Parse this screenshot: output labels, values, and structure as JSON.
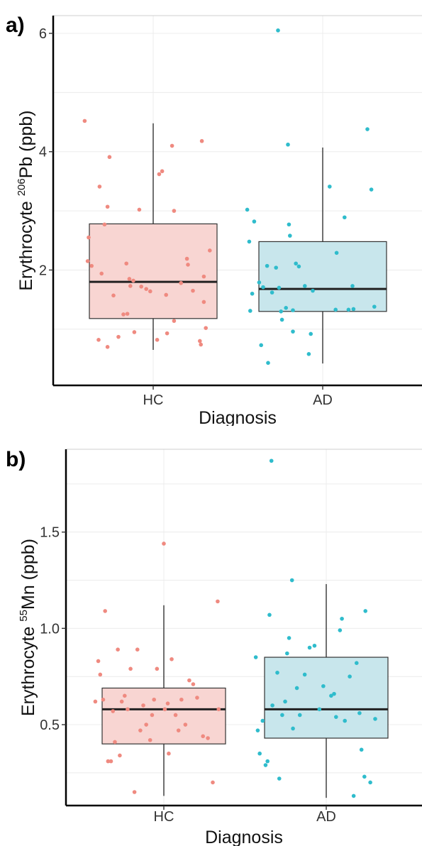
{
  "chart_data": [
    {
      "type": "boxplot",
      "panel_label": "a)",
      "xlabel": "Diagnosis",
      "ylabel": {
        "prefix": "Erythrocyte ",
        "superscript": "206",
        "suffix": "Pb (ppb)"
      },
      "categories": [
        "HC",
        "AD"
      ],
      "yticks": [
        2,
        4,
        6
      ],
      "ylim": [
        0.05,
        6.3
      ],
      "grid": true,
      "colors": {
        "HC": {
          "fill": "#f8d5d2",
          "point": "#ef8a80"
        },
        "AD": {
          "fill": "#c8e6ec",
          "point": "#2fbccc"
        }
      },
      "boxes": [
        {
          "category": "HC",
          "min": 0.65,
          "q1": 1.18,
          "median": 1.8,
          "q3": 2.78,
          "max": 4.48
        },
        {
          "category": "AD",
          "min": 0.42,
          "q1": 1.3,
          "median": 1.68,
          "q3": 2.48,
          "max": 4.07
        }
      ],
      "points": [
        {
          "category": "HC",
          "jitter": -0.69,
          "value": 4.52
        },
        {
          "category": "HC",
          "jitter": -0.65,
          "value": 2.55
        },
        {
          "category": "HC",
          "jitter": -0.66,
          "value": 2.15
        },
        {
          "category": "HC",
          "jitter": -0.62,
          "value": 2.07
        },
        {
          "category": "HC",
          "jitter": -0.54,
          "value": 3.41
        },
        {
          "category": "HC",
          "jitter": -0.49,
          "value": 2.77
        },
        {
          "category": "HC",
          "jitter": -0.46,
          "value": 3.07
        },
        {
          "category": "HC",
          "jitter": -0.44,
          "value": 3.91
        },
        {
          "category": "HC",
          "jitter": -0.52,
          "value": 1.94
        },
        {
          "category": "HC",
          "jitter": -0.55,
          "value": 0.82
        },
        {
          "category": "HC",
          "jitter": -0.46,
          "value": 0.7
        },
        {
          "category": "HC",
          "jitter": -0.35,
          "value": 0.87
        },
        {
          "category": "HC",
          "jitter": -0.4,
          "value": 1.57
        },
        {
          "category": "HC",
          "jitter": -0.3,
          "value": 1.25
        },
        {
          "category": "HC",
          "jitter": -0.26,
          "value": 1.26
        },
        {
          "category": "HC",
          "jitter": -0.23,
          "value": 1.73
        },
        {
          "category": "HC",
          "jitter": -0.2,
          "value": 1.82
        },
        {
          "category": "HC",
          "jitter": -0.24,
          "value": 1.85
        },
        {
          "category": "HC",
          "jitter": -0.27,
          "value": 2.11
        },
        {
          "category": "HC",
          "jitter": -0.19,
          "value": 0.95
        },
        {
          "category": "HC",
          "jitter": -0.14,
          "value": 3.02
        },
        {
          "category": "HC",
          "jitter": -0.12,
          "value": 1.72
        },
        {
          "category": "HC",
          "jitter": -0.07,
          "value": 1.68
        },
        {
          "category": "HC",
          "jitter": -0.03,
          "value": 1.64
        },
        {
          "category": "HC",
          "jitter": 0.04,
          "value": 0.82
        },
        {
          "category": "HC",
          "jitter": 0.06,
          "value": 3.62
        },
        {
          "category": "HC",
          "jitter": 0.09,
          "value": 3.67
        },
        {
          "category": "HC",
          "jitter": 0.13,
          "value": 1.58
        },
        {
          "category": "HC",
          "jitter": 0.14,
          "value": 0.93
        },
        {
          "category": "HC",
          "jitter": 0.19,
          "value": 4.1
        },
        {
          "category": "HC",
          "jitter": 0.21,
          "value": 3.0
        },
        {
          "category": "HC",
          "jitter": 0.21,
          "value": 1.14
        },
        {
          "category": "HC",
          "jitter": 0.28,
          "value": 1.78
        },
        {
          "category": "HC",
          "jitter": 0.34,
          "value": 2.19
        },
        {
          "category": "HC",
          "jitter": 0.35,
          "value": 2.09
        },
        {
          "category": "HC",
          "jitter": 0.4,
          "value": 1.65
        },
        {
          "category": "HC",
          "jitter": 0.47,
          "value": 0.8
        },
        {
          "category": "HC",
          "jitter": 0.48,
          "value": 0.74
        },
        {
          "category": "HC",
          "jitter": 0.49,
          "value": 4.18
        },
        {
          "category": "HC",
          "jitter": 0.51,
          "value": 1.46
        },
        {
          "category": "HC",
          "jitter": 0.51,
          "value": 1.89
        },
        {
          "category": "HC",
          "jitter": 0.53,
          "value": 1.02
        },
        {
          "category": "HC",
          "jitter": 0.57,
          "value": 2.33
        },
        {
          "category": "AD",
          "jitter": -0.76,
          "value": 3.02
        },
        {
          "category": "AD",
          "jitter": -0.74,
          "value": 2.48
        },
        {
          "category": "AD",
          "jitter": -0.69,
          "value": 2.82
        },
        {
          "category": "AD",
          "jitter": -0.71,
          "value": 1.6
        },
        {
          "category": "AD",
          "jitter": -0.73,
          "value": 1.31
        },
        {
          "category": "AD",
          "jitter": -0.62,
          "value": 0.73
        },
        {
          "category": "AD",
          "jitter": -0.64,
          "value": 1.79
        },
        {
          "category": "AD",
          "jitter": -0.6,
          "value": 1.71
        },
        {
          "category": "AD",
          "jitter": -0.55,
          "value": 0.43
        },
        {
          "category": "AD",
          "jitter": -0.56,
          "value": 2.07
        },
        {
          "category": "AD",
          "jitter": -0.51,
          "value": 1.62
        },
        {
          "category": "AD",
          "jitter": -0.47,
          "value": 2.04
        },
        {
          "category": "AD",
          "jitter": -0.44,
          "value": 1.7
        },
        {
          "category": "AD",
          "jitter": -0.42,
          "value": 1.3
        },
        {
          "category": "AD",
          "jitter": -0.41,
          "value": 1.16
        },
        {
          "category": "AD",
          "jitter": -0.37,
          "value": 1.36
        },
        {
          "category": "AD",
          "jitter": -0.34,
          "value": 2.77
        },
        {
          "category": "AD",
          "jitter": -0.33,
          "value": 2.58
        },
        {
          "category": "AD",
          "jitter": -0.3,
          "value": 1.32
        },
        {
          "category": "AD",
          "jitter": -0.27,
          "value": 2.11
        },
        {
          "category": "AD",
          "jitter": -0.3,
          "value": 0.96
        },
        {
          "category": "AD",
          "jitter": -0.24,
          "value": 2.06
        },
        {
          "category": "AD",
          "jitter": -0.18,
          "value": 1.73
        },
        {
          "category": "AD",
          "jitter": -0.14,
          "value": 0.58
        },
        {
          "category": "AD",
          "jitter": -0.1,
          "value": 1.65
        },
        {
          "category": "AD",
          "jitter": -0.12,
          "value": 0.92
        },
        {
          "category": "AD",
          "jitter": 0.07,
          "value": 3.41
        },
        {
          "category": "AD",
          "jitter": 0.13,
          "value": 1.33
        },
        {
          "category": "AD",
          "jitter": 0.14,
          "value": 2.29
        },
        {
          "category": "AD",
          "jitter": 0.22,
          "value": 2.89
        },
        {
          "category": "AD",
          "jitter": 0.26,
          "value": 1.33
        },
        {
          "category": "AD",
          "jitter": 0.3,
          "value": 1.73
        },
        {
          "category": "AD",
          "jitter": 0.31,
          "value": 1.34
        },
        {
          "category": "AD",
          "jitter": 0.45,
          "value": 4.38
        },
        {
          "category": "AD",
          "jitter": 0.49,
          "value": 3.36
        },
        {
          "category": "AD",
          "jitter": 0.52,
          "value": 1.38
        },
        {
          "category": "AD",
          "jitter": -0.35,
          "value": 4.12
        },
        {
          "category": "AD",
          "jitter": -0.45,
          "value": 6.05
        }
      ]
    },
    {
      "type": "boxplot",
      "panel_label": "b)",
      "xlabel": "Diagnosis",
      "ylabel": {
        "prefix": "Erythrocyte ",
        "superscript": "55",
        "suffix": "Mn (ppb)"
      },
      "categories": [
        "HC",
        "AD"
      ],
      "yticks": [
        0.5,
        1.0,
        1.5
      ],
      "ytick_labels": [
        "0.5",
        "1.0",
        "1.5"
      ],
      "ylim": [
        0.08,
        1.93
      ],
      "grid": true,
      "colors": {
        "HC": {
          "fill": "#f8d5d2",
          "point": "#ef8a80"
        },
        "AD": {
          "fill": "#c8e6ec",
          "point": "#2fbccc"
        }
      },
      "boxes": [
        {
          "category": "HC",
          "min": 0.13,
          "q1": 0.4,
          "median": 0.58,
          "q3": 0.69,
          "max": 1.12
        },
        {
          "category": "AD",
          "min": 0.12,
          "q1": 0.43,
          "median": 0.58,
          "q3": 0.85,
          "max": 1.23
        }
      ],
      "points": [
        {
          "category": "HC",
          "jitter": -0.7,
          "value": 0.62
        },
        {
          "category": "HC",
          "jitter": -0.67,
          "value": 0.83
        },
        {
          "category": "HC",
          "jitter": -0.65,
          "value": 0.76
        },
        {
          "category": "HC",
          "jitter": -0.6,
          "value": 1.09
        },
        {
          "category": "HC",
          "jitter": -0.62,
          "value": 0.63
        },
        {
          "category": "HC",
          "jitter": -0.57,
          "value": 0.31
        },
        {
          "category": "HC",
          "jitter": -0.54,
          "value": 0.31
        },
        {
          "category": "HC",
          "jitter": -0.52,
          "value": 0.57
        },
        {
          "category": "HC",
          "jitter": -0.5,
          "value": 0.41
        },
        {
          "category": "HC",
          "jitter": -0.47,
          "value": 0.89
        },
        {
          "category": "HC",
          "jitter": -0.45,
          "value": 0.34
        },
        {
          "category": "HC",
          "jitter": -0.43,
          "value": 0.62
        },
        {
          "category": "HC",
          "jitter": -0.4,
          "value": 0.65
        },
        {
          "category": "HC",
          "jitter": -0.37,
          "value": 0.58
        },
        {
          "category": "HC",
          "jitter": -0.34,
          "value": 0.79
        },
        {
          "category": "HC",
          "jitter": -0.3,
          "value": 0.15
        },
        {
          "category": "HC",
          "jitter": -0.27,
          "value": 0.89
        },
        {
          "category": "HC",
          "jitter": -0.24,
          "value": 0.47
        },
        {
          "category": "HC",
          "jitter": -0.21,
          "value": 0.6
        },
        {
          "category": "HC",
          "jitter": -0.18,
          "value": 0.5
        },
        {
          "category": "HC",
          "jitter": -0.12,
          "value": 0.55
        },
        {
          "category": "HC",
          "jitter": -0.1,
          "value": 0.63
        },
        {
          "category": "HC",
          "jitter": -0.07,
          "value": 0.79
        },
        {
          "category": "HC",
          "jitter": 0.0,
          "value": 1.44
        },
        {
          "category": "HC",
          "jitter": 0.01,
          "value": 0.58
        },
        {
          "category": "HC",
          "jitter": 0.04,
          "value": 0.61
        },
        {
          "category": "HC",
          "jitter": 0.05,
          "value": 0.35
        },
        {
          "category": "HC",
          "jitter": 0.08,
          "value": 0.84
        },
        {
          "category": "HC",
          "jitter": 0.12,
          "value": 0.55
        },
        {
          "category": "HC",
          "jitter": 0.15,
          "value": 0.47
        },
        {
          "category": "HC",
          "jitter": 0.18,
          "value": 0.63
        },
        {
          "category": "HC",
          "jitter": 0.22,
          "value": 0.5
        },
        {
          "category": "HC",
          "jitter": 0.26,
          "value": 0.73
        },
        {
          "category": "HC",
          "jitter": 0.3,
          "value": 0.71
        },
        {
          "category": "HC",
          "jitter": 0.34,
          "value": 0.64
        },
        {
          "category": "HC",
          "jitter": 0.4,
          "value": 0.44
        },
        {
          "category": "HC",
          "jitter": 0.45,
          "value": 0.43
        },
        {
          "category": "HC",
          "jitter": 0.5,
          "value": 0.2
        },
        {
          "category": "HC",
          "jitter": 0.55,
          "value": 1.14
        },
        {
          "category": "HC",
          "jitter": 0.56,
          "value": 0.58
        },
        {
          "category": "HC",
          "jitter": -0.14,
          "value": 0.42
        },
        {
          "category": "AD",
          "jitter": -0.72,
          "value": 0.85
        },
        {
          "category": "AD",
          "jitter": -0.7,
          "value": 0.47
        },
        {
          "category": "AD",
          "jitter": -0.68,
          "value": 0.35
        },
        {
          "category": "AD",
          "jitter": -0.65,
          "value": 0.52
        },
        {
          "category": "AD",
          "jitter": -0.62,
          "value": 0.29
        },
        {
          "category": "AD",
          "jitter": -0.6,
          "value": 0.31
        },
        {
          "category": "AD",
          "jitter": -0.58,
          "value": 1.07
        },
        {
          "category": "AD",
          "jitter": -0.55,
          "value": 0.6
        },
        {
          "category": "AD",
          "jitter": -0.5,
          "value": 0.77
        },
        {
          "category": "AD",
          "jitter": -0.48,
          "value": 0.22
        },
        {
          "category": "AD",
          "jitter": -0.45,
          "value": 0.55
        },
        {
          "category": "AD",
          "jitter": -0.42,
          "value": 0.62
        },
        {
          "category": "AD",
          "jitter": -0.4,
          "value": 0.87
        },
        {
          "category": "AD",
          "jitter": -0.38,
          "value": 0.95
        },
        {
          "category": "AD",
          "jitter": -0.35,
          "value": 1.25
        },
        {
          "category": "AD",
          "jitter": -0.34,
          "value": 0.48
        },
        {
          "category": "AD",
          "jitter": -0.3,
          "value": 0.69
        },
        {
          "category": "AD",
          "jitter": -0.27,
          "value": 0.55
        },
        {
          "category": "AD",
          "jitter": -0.22,
          "value": 0.76
        },
        {
          "category": "AD",
          "jitter": -0.17,
          "value": 0.9
        },
        {
          "category": "AD",
          "jitter": -0.12,
          "value": 0.91
        },
        {
          "category": "AD",
          "jitter": -0.07,
          "value": 0.58
        },
        {
          "category": "AD",
          "jitter": -0.03,
          "value": 0.7
        },
        {
          "category": "AD",
          "jitter": 0.05,
          "value": 0.65
        },
        {
          "category": "AD",
          "jitter": 0.08,
          "value": 0.66
        },
        {
          "category": "AD",
          "jitter": 0.1,
          "value": 0.54
        },
        {
          "category": "AD",
          "jitter": 0.14,
          "value": 0.99
        },
        {
          "category": "AD",
          "jitter": 0.16,
          "value": 1.05
        },
        {
          "category": "AD",
          "jitter": 0.19,
          "value": 0.52
        },
        {
          "category": "AD",
          "jitter": 0.24,
          "value": 0.75
        },
        {
          "category": "AD",
          "jitter": 0.28,
          "value": 0.13
        },
        {
          "category": "AD",
          "jitter": 0.31,
          "value": 0.82
        },
        {
          "category": "AD",
          "jitter": 0.34,
          "value": 0.56
        },
        {
          "category": "AD",
          "jitter": 0.36,
          "value": 0.37
        },
        {
          "category": "AD",
          "jitter": 0.39,
          "value": 0.23
        },
        {
          "category": "AD",
          "jitter": 0.4,
          "value": 1.09
        },
        {
          "category": "AD",
          "jitter": 0.45,
          "value": 0.2
        },
        {
          "category": "AD",
          "jitter": 0.5,
          "value": 0.53
        },
        {
          "category": "AD",
          "jitter": -0.56,
          "value": 1.87
        }
      ]
    }
  ]
}
